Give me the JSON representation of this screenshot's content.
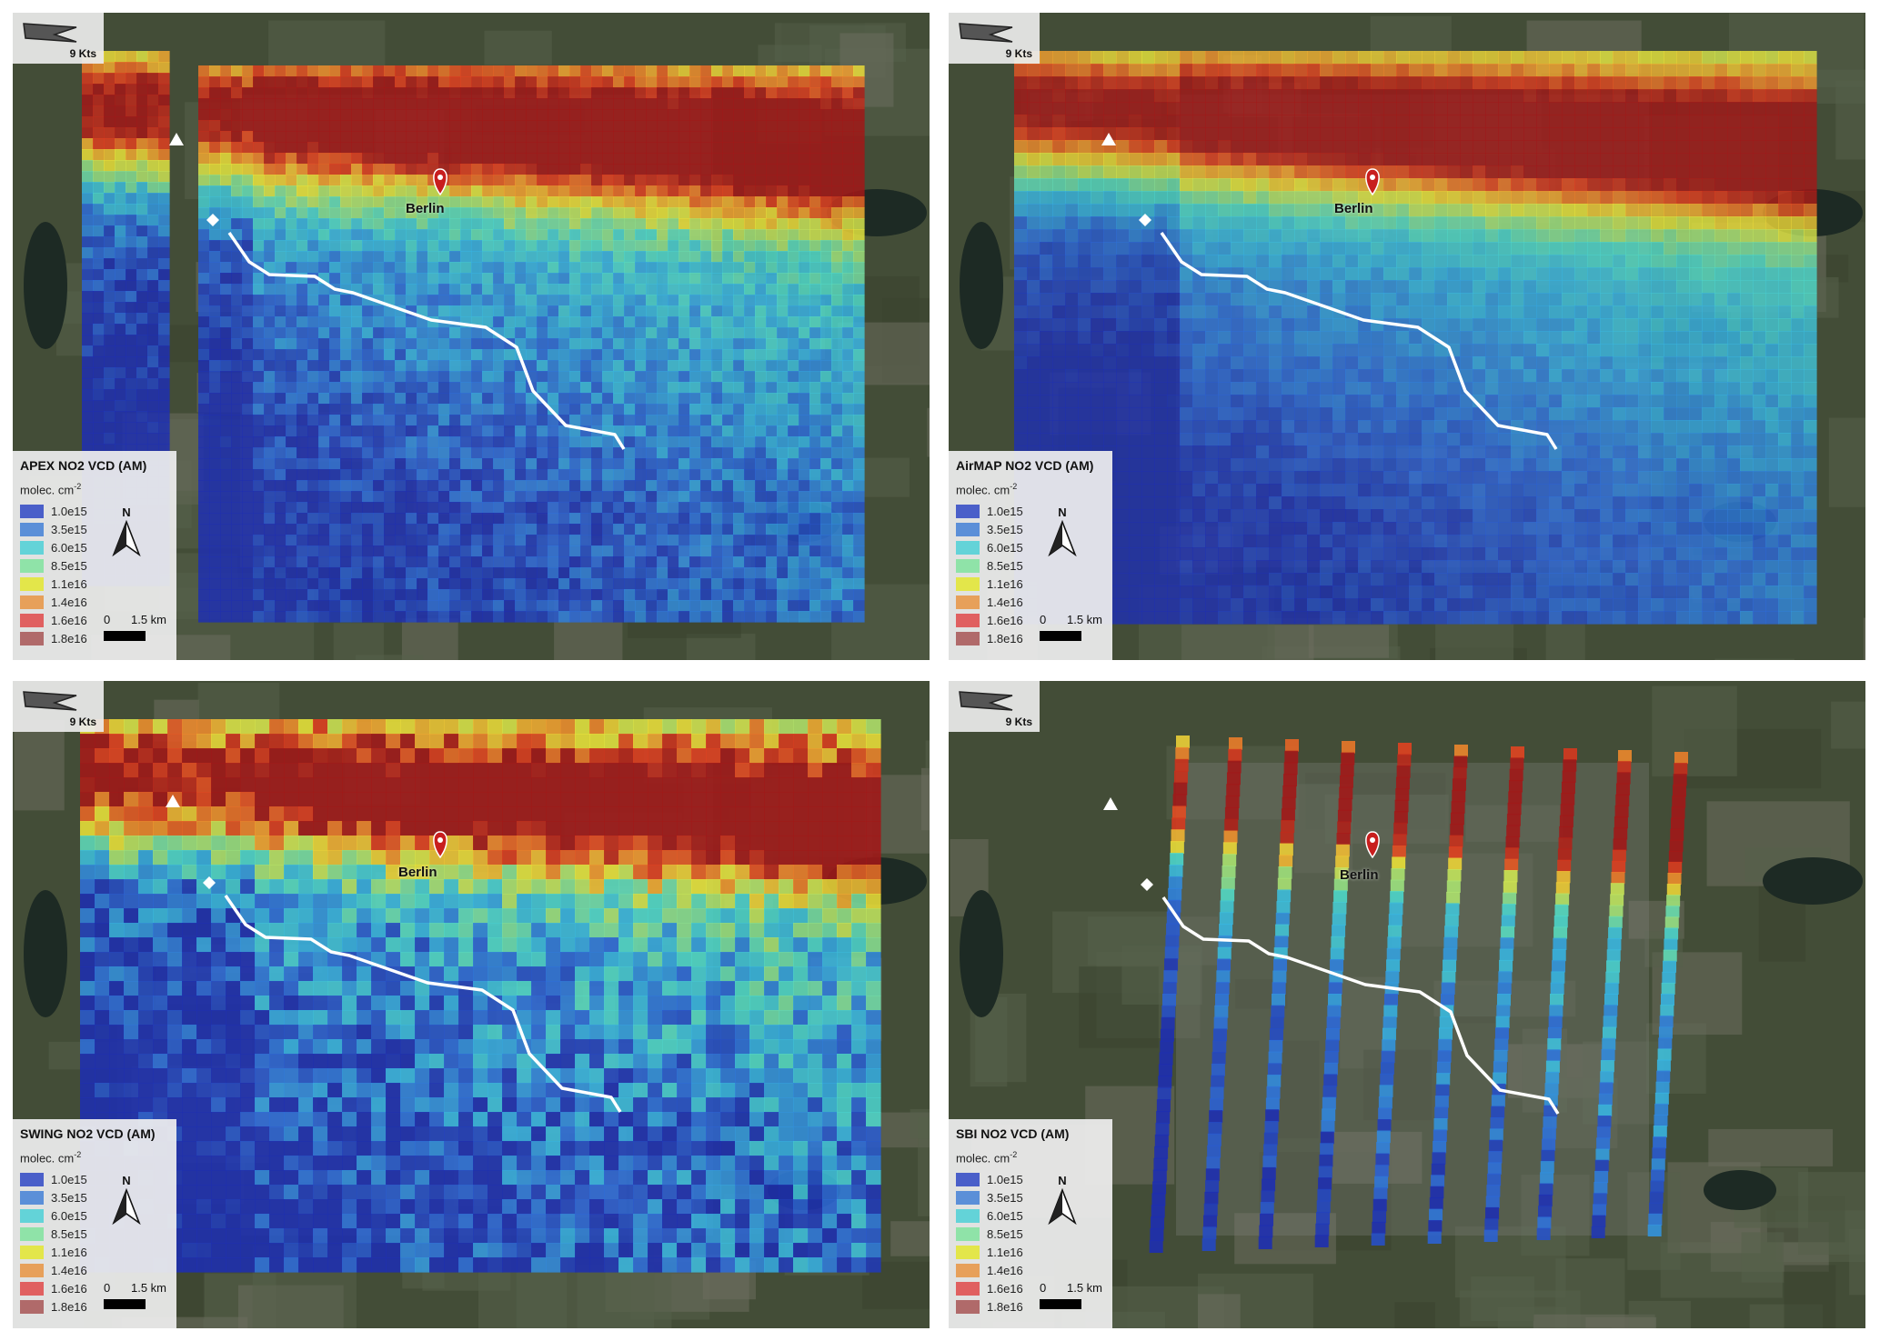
{
  "panels": [
    {
      "title": "APEX NO2 VCD (AM)",
      "unit_base": "molec. cm",
      "unit_exp": "-2",
      "wind_label": "9 Kts",
      "city_label": "Berlin",
      "scale_zero": "0",
      "scale_label": "1.5 km",
      "north_label": "N",
      "style": "smooth-gap"
    },
    {
      "title": "AirMAP NO2 VCD (AM)",
      "unit_base": "molec. cm",
      "unit_exp": "-2",
      "wind_label": "9 Kts",
      "city_label": "Berlin",
      "scale_zero": "0",
      "scale_label": "1.5 km",
      "north_label": "N",
      "style": "smooth"
    },
    {
      "title": "SWING NO2 VCD (AM)",
      "unit_base": "molec. cm",
      "unit_exp": "-2",
      "wind_label": "9 Kts",
      "city_label": "Berlin",
      "scale_zero": "0",
      "scale_label": "1.5 km",
      "north_label": "N",
      "style": "pixel"
    },
    {
      "title": "SBI NO2 VCD (AM)",
      "unit_base": "molec. cm",
      "unit_exp": "-2",
      "wind_label": "9 Kts",
      "city_label": "Berlin",
      "scale_zero": "0",
      "scale_label": "1.5 km",
      "north_label": "N",
      "style": "strips"
    }
  ],
  "legend": [
    {
      "label": "1.0e15",
      "color": "#4a5fc9"
    },
    {
      "label": "3.5e15",
      "color": "#5b8fd8"
    },
    {
      "label": "6.0e15",
      "color": "#63d3d8"
    },
    {
      "label": "8.5e15",
      "color": "#8fe3a8"
    },
    {
      "label": "1.1e16",
      "color": "#e3e64a"
    },
    {
      "label": "1.4e16",
      "color": "#e7a05a"
    },
    {
      "label": "1.6e16",
      "color": "#e06060"
    },
    {
      "label": "1.8e16",
      "color": "#b06a6a"
    }
  ],
  "colorscale": [
    "#1e2fb0",
    "#2e6bd8",
    "#37b3e0",
    "#4fd8c8",
    "#9fe07a",
    "#e8e43a",
    "#f0a030",
    "#e04020",
    "#a01818"
  ]
}
